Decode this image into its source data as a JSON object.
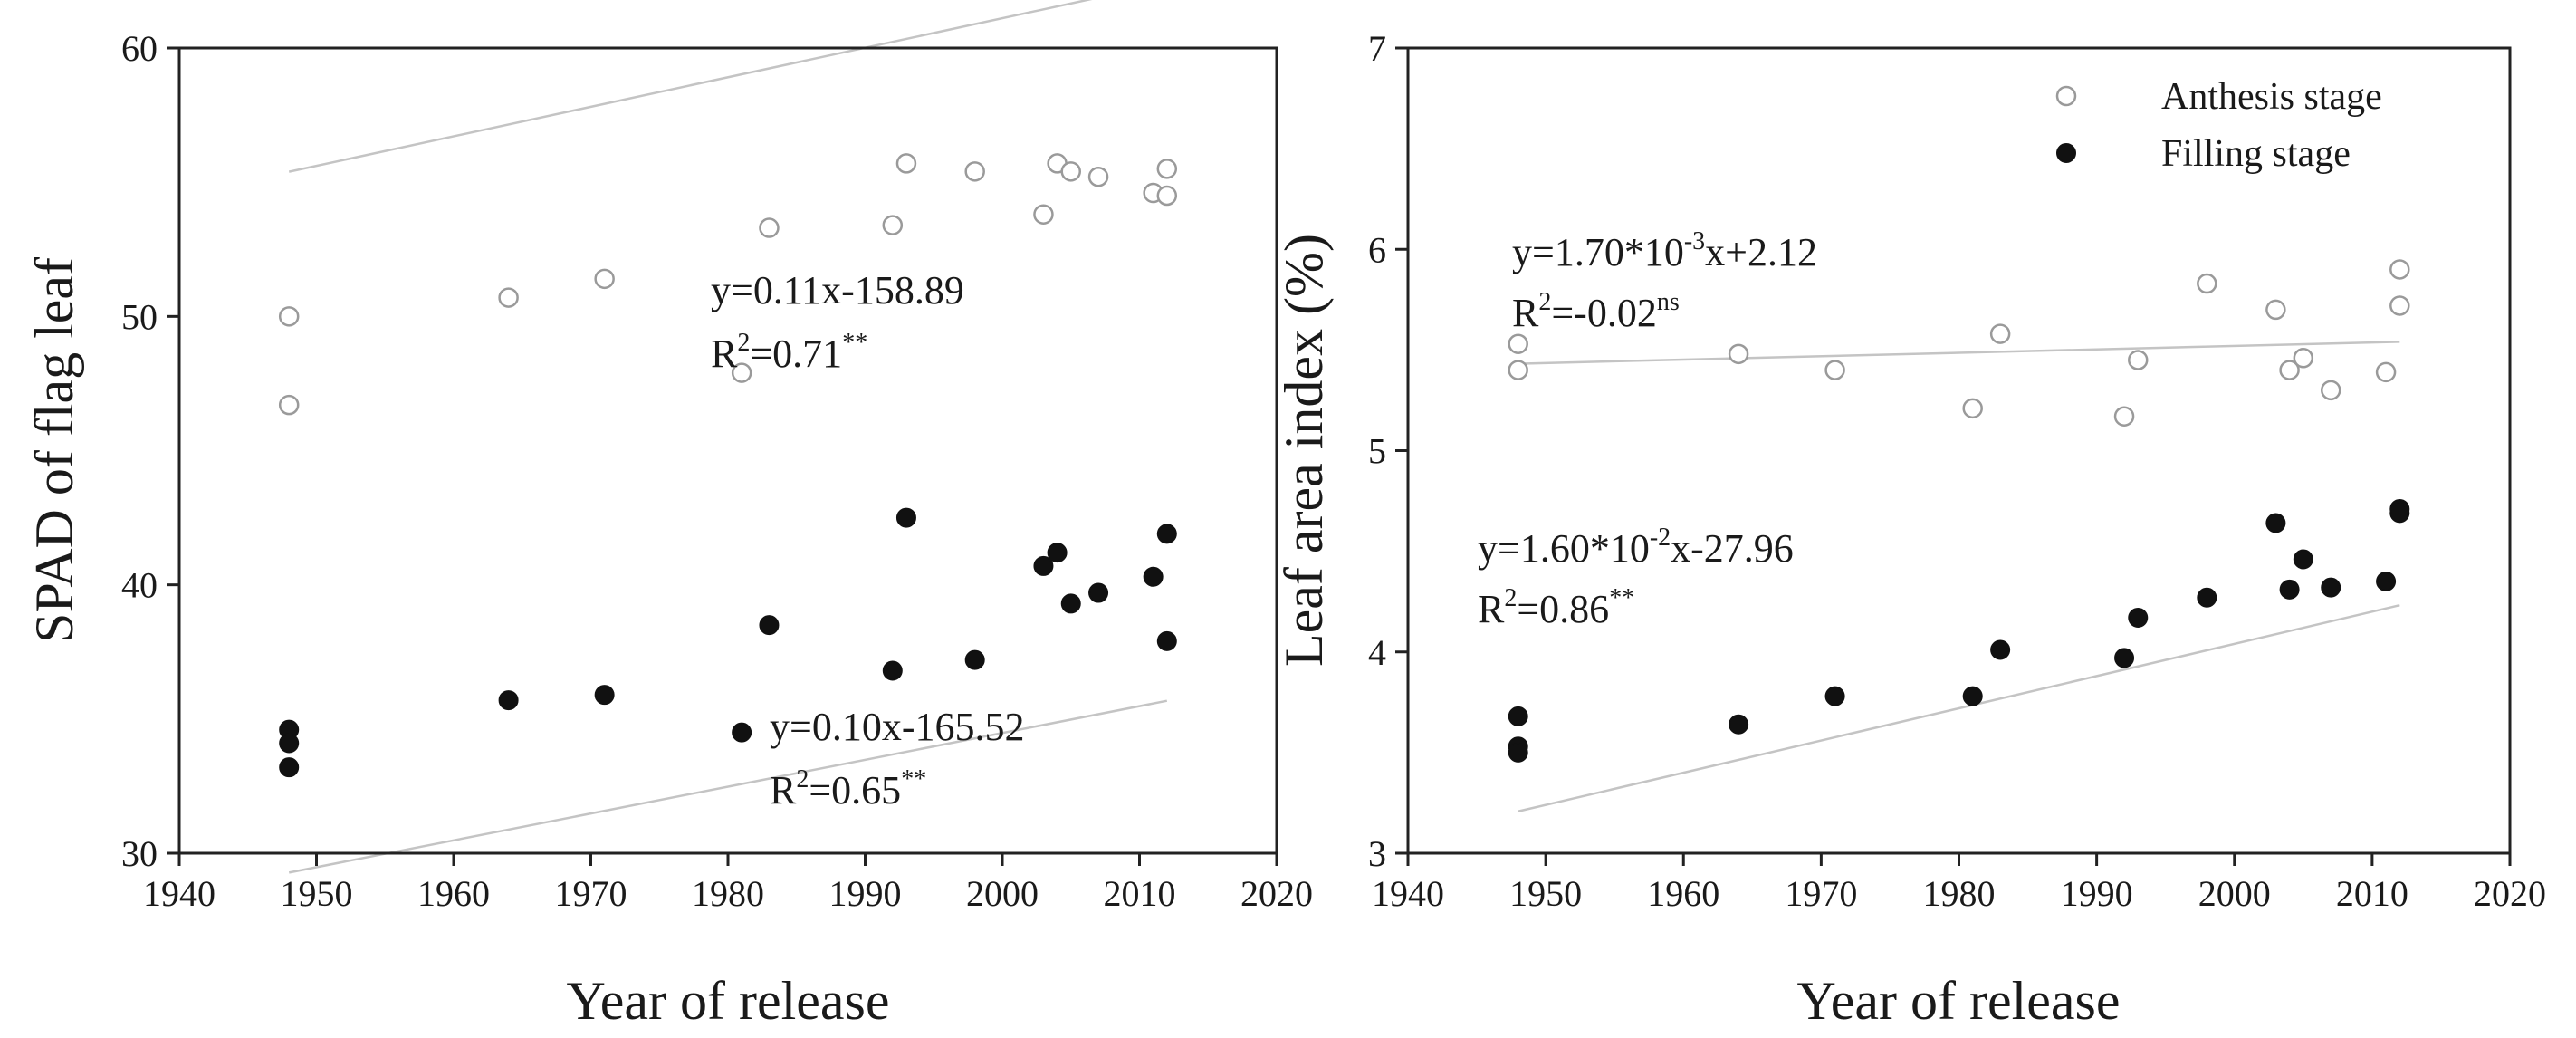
{
  "chart_data": [
    {
      "type": "scatter",
      "xlabel": "Year of release",
      "ylabel": "SPAD of flag leaf",
      "xlim": [
        1940,
        2020
      ],
      "ylim": [
        30,
        60
      ],
      "xticks": [
        "1940",
        "1950",
        "1960",
        "1970",
        "1980",
        "1990",
        "2000",
        "2010",
        "2020"
      ],
      "yticks": [
        "30",
        "40",
        "50",
        "60"
      ],
      "grid": false,
      "legend": null,
      "series": [
        {
          "marker": "open-circle",
          "color": "#9a9a9a",
          "x": [
            1948,
            1948,
            1964,
            1971,
            1981,
            1983,
            1992,
            1993,
            1998,
            2003,
            2004,
            2005,
            2007,
            2011,
            2012,
            2012
          ],
          "y": [
            50.0,
            46.7,
            50.7,
            51.4,
            47.9,
            53.3,
            53.4,
            55.7,
            55.4,
            53.8,
            55.7,
            55.4,
            55.2,
            54.6,
            55.5,
            54.5
          ],
          "fit": {
            "slope": 0.11,
            "intercept": -158.89,
            "x_range": [
              1948,
              2012
            ],
            "color": "#c4c4c4"
          },
          "equation": {
            "main": "y=0.11x-158.89",
            "r2_prefix": "R",
            "r2_exp": "2",
            "r2_value": "=0.71",
            "r2_sig": "**"
          }
        },
        {
          "marker": "filled-circle",
          "color": "#111111",
          "x": [
            1948,
            1948,
            1948,
            1964,
            1971,
            1981,
            1983,
            1992,
            1993,
            1998,
            2003,
            2004,
            2005,
            2007,
            2011,
            2012,
            2012
          ],
          "y": [
            34.6,
            34.1,
            33.2,
            35.7,
            35.9,
            34.5,
            38.5,
            36.8,
            42.5,
            37.2,
            40.7,
            41.2,
            39.3,
            39.7,
            40.3,
            41.9,
            37.9
          ],
          "fit": {
            "slope": 0.1,
            "intercept": -165.52,
            "x_range": [
              1948,
              2012
            ],
            "color": "#c4c4c4"
          },
          "equation": {
            "main": "y=0.10x-165.52",
            "r2_prefix": "R",
            "r2_exp": "2",
            "r2_value": "=0.65",
            "r2_sig": "**"
          }
        }
      ]
    },
    {
      "type": "scatter",
      "xlabel": "Year of release",
      "ylabel": "Leaf area index (%)",
      "xlim": [
        1940,
        2020
      ],
      "ylim": [
        3,
        7
      ],
      "xticks": [
        "1940",
        "1950",
        "1960",
        "1970",
        "1980",
        "1990",
        "2000",
        "2010",
        "2020"
      ],
      "yticks": [
        "3",
        "4",
        "5",
        "6",
        "7"
      ],
      "grid": false,
      "legend": "top-right",
      "series": [
        {
          "name": "Anthesis stage",
          "marker": "open-circle",
          "color": "#9a9a9a",
          "x": [
            1948,
            1948,
            1964,
            1971,
            1981,
            1983,
            1992,
            1993,
            1998,
            2003,
            2004,
            2005,
            2007,
            2011,
            2012,
            2012
          ],
          "y": [
            5.53,
            5.4,
            5.48,
            5.4,
            5.21,
            5.58,
            5.17,
            5.45,
            5.83,
            5.7,
            5.4,
            5.46,
            5.3,
            5.39,
            5.9,
            5.72
          ],
          "fit": {
            "slope": 0.0017,
            "intercept": 2.12,
            "x_range": [
              1948,
              2012
            ],
            "color": "#c4c4c4"
          },
          "equation": {
            "main_a": "y=1.70*10",
            "main_exp": "-3",
            "main_b": "x+2.12",
            "r2_prefix": "R",
            "r2_exp": "2",
            "r2_value": "=-0.02",
            "r2_sig": "ns"
          }
        },
        {
          "name": "Filling stage",
          "marker": "filled-circle",
          "color": "#111111",
          "x": [
            1948,
            1948,
            1948,
            1964,
            1971,
            1981,
            1983,
            1992,
            1993,
            1998,
            2003,
            2004,
            2005,
            2007,
            2011,
            2012,
            2012
          ],
          "y": [
            3.68,
            3.53,
            3.5,
            3.64,
            3.78,
            3.78,
            4.01,
            3.97,
            4.17,
            4.27,
            4.64,
            4.31,
            4.46,
            4.32,
            4.35,
            4.71,
            4.69
          ],
          "fit": {
            "slope": 0.016,
            "intercept": -27.96,
            "x_range": [
              1948,
              2012
            ],
            "color": "#c4c4c4"
          },
          "equation": {
            "main_a": "y=1.60*10",
            "main_exp": "-2",
            "main_b": "x-27.96",
            "r2_prefix": "R",
            "r2_exp": "2",
            "r2_value": "=0.86",
            "r2_sig": "**"
          }
        }
      ]
    }
  ]
}
